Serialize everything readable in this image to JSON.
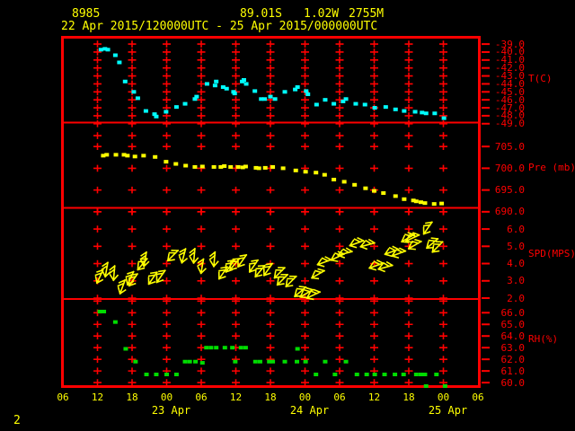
{
  "header": {
    "station_id": "8985",
    "latitude": "89.01S",
    "longitude": "1.02W",
    "elevation": "2755M",
    "time_range": "22 Apr 2015/120000UTC - 25 Apr 2015/000000UTC"
  },
  "footer": {
    "page_number": "2"
  },
  "colors": {
    "grid": "#ff0000",
    "temperature": "#00ffff",
    "pressure": "#ffff00",
    "wind": "#ffff00",
    "humidity": "#00dd00",
    "header_text": "#ffff00"
  },
  "chart_data": {
    "type": "scatter",
    "subtype": "multi-panel-meteogram",
    "title": "22 Apr 2015/120000UTC - 25 Apr 2015/000000UTC",
    "x_axis": {
      "unit": "hours since 22 Apr 2015 00UTC",
      "range": [
        6,
        78
      ],
      "tick_step_hours": 6,
      "tick_labels": [
        "06",
        "12",
        "18",
        "00",
        "06",
        "12",
        "18",
        "00",
        "06",
        "12",
        "18",
        "00",
        "06"
      ],
      "date_labels": [
        {
          "label": "23 Apr",
          "hour": 24
        },
        {
          "label": "24 Apr",
          "hour": 48
        },
        {
          "label": "25 Apr",
          "hour": 72
        }
      ]
    },
    "panels": [
      {
        "id": "temperature",
        "unit_label": "T(C)",
        "marker": "square",
        "color": "#00ffff",
        "y_top_value": -38.2,
        "y_bottom_value": -48.8,
        "y_label_ticks": [
          -39,
          -40,
          -41,
          -42,
          -43,
          -44,
          -45,
          -46,
          -47,
          -48,
          -49
        ],
        "y_grid_ticks": [
          -39,
          -40,
          -41,
          -42,
          -43,
          -44,
          -45,
          -46,
          -47,
          -48,
          -49
        ],
        "points": [
          [
            12.6,
            -39.7
          ],
          [
            13.3,
            -39.6
          ],
          [
            13.8,
            -39.7
          ],
          [
            15.1,
            -40.4
          ],
          [
            15.8,
            -41.3
          ],
          [
            16.8,
            -43.7
          ],
          [
            18.3,
            -45.0
          ],
          [
            19.0,
            -45.8
          ],
          [
            20.4,
            -47.4
          ],
          [
            21.9,
            -47.8
          ],
          [
            22.2,
            -48.1
          ],
          [
            23.9,
            -47.5
          ],
          [
            25.7,
            -46.9
          ],
          [
            27.2,
            -46.5
          ],
          [
            28.9,
            -45.9
          ],
          [
            29.2,
            -45.6
          ],
          [
            31.0,
            -44.0
          ],
          [
            32.4,
            -44.2
          ],
          [
            32.6,
            -43.7
          ],
          [
            33.8,
            -44.4
          ],
          [
            34.4,
            -44.6
          ],
          [
            35.6,
            -45.0
          ],
          [
            35.8,
            -45.2
          ],
          [
            37.1,
            -43.7
          ],
          [
            37.4,
            -43.5
          ],
          [
            37.8,
            -44.0
          ],
          [
            39.3,
            -44.9
          ],
          [
            40.4,
            -45.9
          ],
          [
            41.0,
            -45.9
          ],
          [
            42.0,
            -45.6
          ],
          [
            42.8,
            -45.9
          ],
          [
            44.5,
            -45.0
          ],
          [
            46.3,
            -44.7
          ],
          [
            46.7,
            -44.4
          ],
          [
            48.2,
            -44.9
          ],
          [
            48.5,
            -45.3
          ],
          [
            50.0,
            -46.6
          ],
          [
            51.5,
            -46.0
          ],
          [
            53.0,
            -46.5
          ],
          [
            54.6,
            -46.2
          ],
          [
            55.1,
            -45.9
          ],
          [
            56.8,
            -46.5
          ],
          [
            58.4,
            -46.6
          ],
          [
            60.1,
            -47.0
          ],
          [
            62.0,
            -46.9
          ],
          [
            63.7,
            -47.2
          ],
          [
            65.2,
            -47.4
          ],
          [
            67.1,
            -47.5
          ],
          [
            68.3,
            -47.6
          ],
          [
            69.0,
            -47.7
          ],
          [
            70.5,
            -47.7
          ],
          [
            72.1,
            -48.3
          ]
        ]
      },
      {
        "id": "pressure",
        "unit_label": "Pre (mb)",
        "marker": "square",
        "color": "#ffff00",
        "y_top_value": 710.4,
        "y_bottom_value": 691.0,
        "y_label_ticks": [
          705,
          700,
          695,
          690
        ],
        "y_grid_ticks": [
          707.5,
          705,
          700,
          695,
          690
        ],
        "points": [
          [
            13.0,
            702.9
          ],
          [
            13.6,
            703.1
          ],
          [
            15.2,
            703.1
          ],
          [
            16.6,
            703.1
          ],
          [
            17.2,
            702.9
          ],
          [
            18.5,
            702.7
          ],
          [
            20.0,
            702.9
          ],
          [
            22.0,
            702.6
          ],
          [
            23.9,
            701.5
          ],
          [
            25.6,
            701.0
          ],
          [
            27.3,
            700.6
          ],
          [
            28.9,
            700.3
          ],
          [
            30.2,
            700.4
          ],
          [
            32.2,
            700.3
          ],
          [
            33.4,
            700.3
          ],
          [
            34.0,
            700.5
          ],
          [
            35.1,
            700.3
          ],
          [
            36.4,
            700.3
          ],
          [
            37.2,
            700.2
          ],
          [
            37.7,
            700.4
          ],
          [
            39.5,
            700.1
          ],
          [
            40.0,
            700.0
          ],
          [
            41.1,
            700.1
          ],
          [
            42.4,
            700.3
          ],
          [
            44.2,
            700.0
          ],
          [
            46.4,
            699.5
          ],
          [
            48.1,
            699.2
          ],
          [
            49.9,
            699.0
          ],
          [
            51.4,
            698.5
          ],
          [
            53.0,
            697.4
          ],
          [
            54.8,
            696.9
          ],
          [
            56.6,
            696.2
          ],
          [
            58.5,
            695.4
          ],
          [
            60.0,
            694.8
          ],
          [
            61.6,
            694.3
          ],
          [
            63.7,
            693.6
          ],
          [
            65.2,
            692.9
          ],
          [
            66.8,
            692.6
          ],
          [
            67.3,
            692.4
          ],
          [
            68.1,
            692.2
          ],
          [
            68.8,
            692.0
          ],
          [
            70.4,
            691.8
          ],
          [
            71.7,
            691.9
          ]
        ]
      },
      {
        "id": "wind_speed",
        "unit_label": "SPD(MPS)",
        "marker": "arrow",
        "color": "#ffff00",
        "y_top_value": 7.2,
        "y_bottom_value": 2.0,
        "y_label_ticks": [
          6,
          5,
          4,
          3,
          2
        ],
        "y_grid_ticks": [
          7,
          6,
          5,
          4,
          3,
          2
        ],
        "points_format": "[hour, speed_mps, arrow_direction_deg]",
        "points": [
          [
            12.5,
            3.3,
            205
          ],
          [
            13.6,
            3.7,
            190
          ],
          [
            14.9,
            3.5,
            185
          ],
          [
            16.4,
            2.7,
            200
          ],
          [
            17.8,
            3.2,
            205
          ],
          [
            18.3,
            3.1,
            215
          ],
          [
            19.9,
            4.0,
            220
          ],
          [
            20.3,
            4.3,
            190
          ],
          [
            21.7,
            3.2,
            215
          ],
          [
            23.1,
            3.3,
            215
          ],
          [
            25.2,
            4.5,
            225
          ],
          [
            27.0,
            4.5,
            195
          ],
          [
            28.8,
            4.5,
            185
          ],
          [
            30.2,
            3.9,
            190
          ],
          [
            32.3,
            4.3,
            185
          ],
          [
            33.9,
            3.5,
            215
          ],
          [
            35.1,
            3.9,
            215
          ],
          [
            35.9,
            4.0,
            220
          ],
          [
            37.2,
            4.2,
            215
          ],
          [
            39.2,
            3.9,
            215
          ],
          [
            40.3,
            3.6,
            220
          ],
          [
            41.7,
            3.7,
            215
          ],
          [
            43.7,
            3.5,
            225
          ],
          [
            44.2,
            3.1,
            225
          ],
          [
            45.7,
            3.0,
            225
          ],
          [
            47.3,
            2.4,
            230
          ],
          [
            48.4,
            2.3,
            240
          ],
          [
            49.6,
            2.2,
            245
          ],
          [
            50.4,
            3.4,
            240
          ],
          [
            51.5,
            4.1,
            250
          ],
          [
            53.8,
            4.4,
            245
          ],
          [
            55.1,
            4.6,
            255
          ],
          [
            57.1,
            5.2,
            250
          ],
          [
            59.0,
            5.1,
            255
          ],
          [
            60.5,
            3.9,
            250
          ],
          [
            62.1,
            3.8,
            255
          ],
          [
            63.2,
            4.7,
            250
          ],
          [
            64.4,
            4.6,
            250
          ],
          [
            66.0,
            5.5,
            240
          ],
          [
            66.8,
            5.5,
            245
          ],
          [
            67.2,
            5.1,
            240
          ],
          [
            69.4,
            6.1,
            215
          ],
          [
            70.2,
            5.2,
            230
          ],
          [
            71.1,
            5.0,
            225
          ]
        ]
      },
      {
        "id": "relative_humidity",
        "unit_label": "RH(%)",
        "marker": "square",
        "color": "#00dd00",
        "y_top_value": 67.1,
        "y_bottom_value": 59.7,
        "y_label_ticks": [
          66,
          65,
          64,
          63,
          62,
          61,
          60
        ],
        "y_grid_ticks": [
          67,
          66,
          65,
          64,
          63,
          62,
          61,
          60
        ],
        "points": [
          [
            12.4,
            66.1
          ],
          [
            13.1,
            66.1
          ],
          [
            15.1,
            65.2
          ],
          [
            16.9,
            62.9
          ],
          [
            18.6,
            61.8
          ],
          [
            20.5,
            60.7
          ],
          [
            22.2,
            60.7
          ],
          [
            24.0,
            60.7
          ],
          [
            25.7,
            60.7
          ],
          [
            27.2,
            61.8
          ],
          [
            28.0,
            61.8
          ],
          [
            29.0,
            61.8
          ],
          [
            30.2,
            61.7
          ],
          [
            30.9,
            63.0
          ],
          [
            31.7,
            63.0
          ],
          [
            32.6,
            63.0
          ],
          [
            34.1,
            63.0
          ],
          [
            35.4,
            63.0
          ],
          [
            35.9,
            61.8
          ],
          [
            36.9,
            63.0
          ],
          [
            37.7,
            63.0
          ],
          [
            39.4,
            61.8
          ],
          [
            40.2,
            61.8
          ],
          [
            41.8,
            61.8
          ],
          [
            42.4,
            61.8
          ],
          [
            44.5,
            61.8
          ],
          [
            46.6,
            61.8
          ],
          [
            46.7,
            62.9
          ],
          [
            48.1,
            61.8
          ],
          [
            49.9,
            60.7
          ],
          [
            51.5,
            61.8
          ],
          [
            53.2,
            60.7
          ],
          [
            55.1,
            61.8
          ],
          [
            57.0,
            60.7
          ],
          [
            58.7,
            60.7
          ],
          [
            60.1,
            60.7
          ],
          [
            61.8,
            60.7
          ],
          [
            63.6,
            60.7
          ],
          [
            65.1,
            60.7
          ],
          [
            67.3,
            60.7
          ],
          [
            68.1,
            60.7
          ],
          [
            68.8,
            60.7
          ],
          [
            69.0,
            59.7
          ],
          [
            70.8,
            60.7
          ],
          [
            72.3,
            59.7
          ]
        ]
      }
    ]
  }
}
